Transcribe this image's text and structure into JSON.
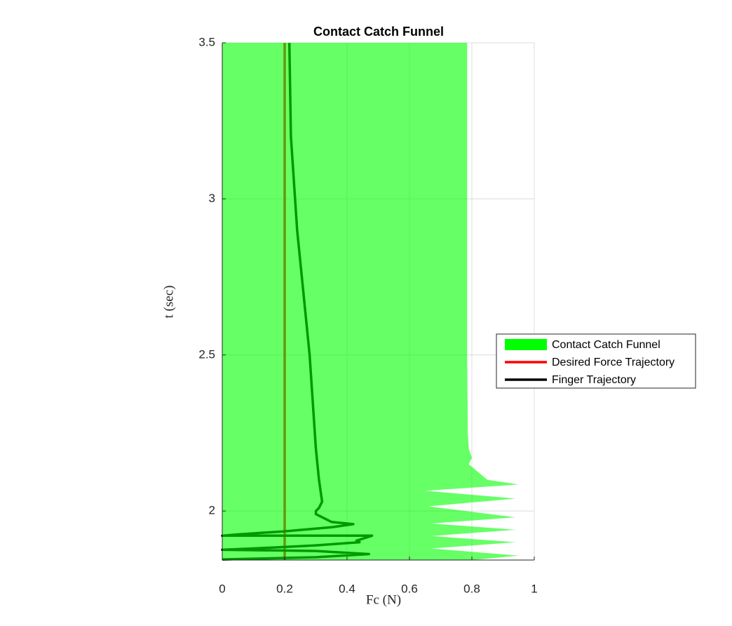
{
  "chart_data": {
    "type": "line",
    "title": "Contact Catch Funnel",
    "xlabel": "Fc (N)",
    "ylabel": "t (sec)",
    "xlim": [
      0,
      1
    ],
    "ylim": [
      1.843,
      3.5
    ],
    "xticks": [
      0,
      0.2,
      0.4,
      0.6,
      0.8,
      1
    ],
    "yticks": [
      2,
      2.5,
      3,
      3.5
    ],
    "grid": true,
    "legend": "right",
    "series": [
      {
        "name": "Contact Catch Funnel",
        "kind": "area",
        "color": "#00ff00",
        "x": [
          0,
          0.785,
          0.785,
          0.787,
          0.79,
          0.8,
          0.79,
          0.85,
          0.95,
          0.65,
          0.94,
          0.66,
          0.94,
          0.67,
          0.94,
          0.67,
          0.94,
          0.67,
          0.95,
          0.8,
          0
        ],
        "y": [
          3.5,
          3.5,
          2.5,
          2.25,
          2.2,
          2.17,
          2.15,
          2.1,
          2.085,
          2.065,
          2.04,
          2.015,
          1.98,
          1.96,
          1.94,
          1.92,
          1.9,
          1.88,
          1.857,
          1.843,
          1.843
        ]
      },
      {
        "name": "Desired Force Trajectory",
        "kind": "line",
        "color": "#ff0000",
        "x": [
          0.2,
          0.2
        ],
        "y": [
          3.5,
          1.843
        ]
      },
      {
        "name": "Finger Trajectory",
        "kind": "line",
        "color": "#000000",
        "x": [
          0.215,
          0.22,
          0.24,
          0.26,
          0.28,
          0.29,
          0.3,
          0.31,
          0.32,
          0.31,
          0.3,
          0.3,
          0.35,
          0.42,
          0.35,
          0.2,
          0.05,
          0,
          0.48,
          0.43,
          0.44,
          0.3,
          0.1,
          0,
          0.3,
          0.47,
          0.3,
          0
        ],
        "y": [
          3.5,
          3.2,
          2.9,
          2.7,
          2.5,
          2.35,
          2.2,
          2.1,
          2.03,
          2.01,
          2.0,
          1.99,
          1.965,
          1.958,
          1.948,
          1.935,
          1.925,
          1.921,
          1.921,
          1.905,
          1.9,
          1.89,
          1.88,
          1.876,
          1.872,
          1.862,
          1.852,
          1.845
        ]
      }
    ]
  }
}
